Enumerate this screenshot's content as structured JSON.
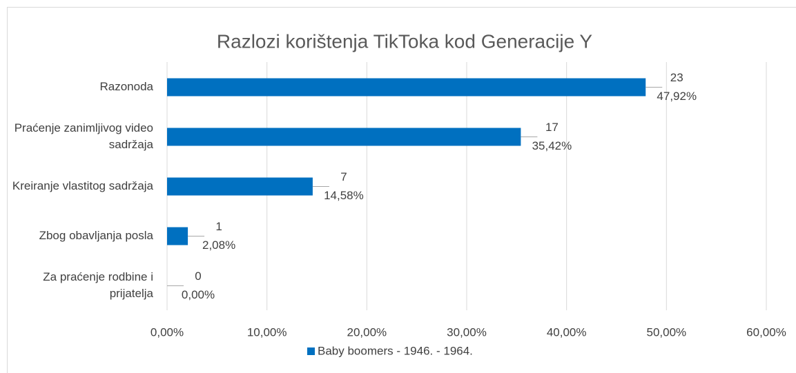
{
  "chart_data": {
    "type": "hbar",
    "title": "Razlozi korištenja TikToka kod Generacije Y",
    "categories": [
      "Razonoda",
      "Praćenje zanimljivog video sadržaja",
      "Kreiranje vlastitog sadržaja",
      "Zbog obavljanja posla",
      "Za praćenje rodbine i prijatelja"
    ],
    "series": [
      {
        "name": "Baby boomers - 1946. - 1964.",
        "color": "#0070c0",
        "values": [
          47.92,
          35.42,
          14.58,
          2.08,
          0
        ],
        "value_labels": [
          "47,92%",
          "35,42%",
          "14,58%",
          "2,08%",
          "0,00%"
        ],
        "counts": [
          23,
          17,
          7,
          1,
          0
        ]
      }
    ],
    "xlim": [
      0,
      60
    ],
    "xticks": [
      {
        "value": 0,
        "label": "0,00%"
      },
      {
        "value": 10,
        "label": "10,00%"
      },
      {
        "value": 20,
        "label": "20,00%"
      },
      {
        "value": 30,
        "label": "30,00%"
      },
      {
        "value": 40,
        "label": "40,00%"
      },
      {
        "value": 50,
        "label": "50,00%"
      },
      {
        "value": 60,
        "label": "60,00%"
      }
    ],
    "grid": true,
    "legend": "bottom"
  }
}
